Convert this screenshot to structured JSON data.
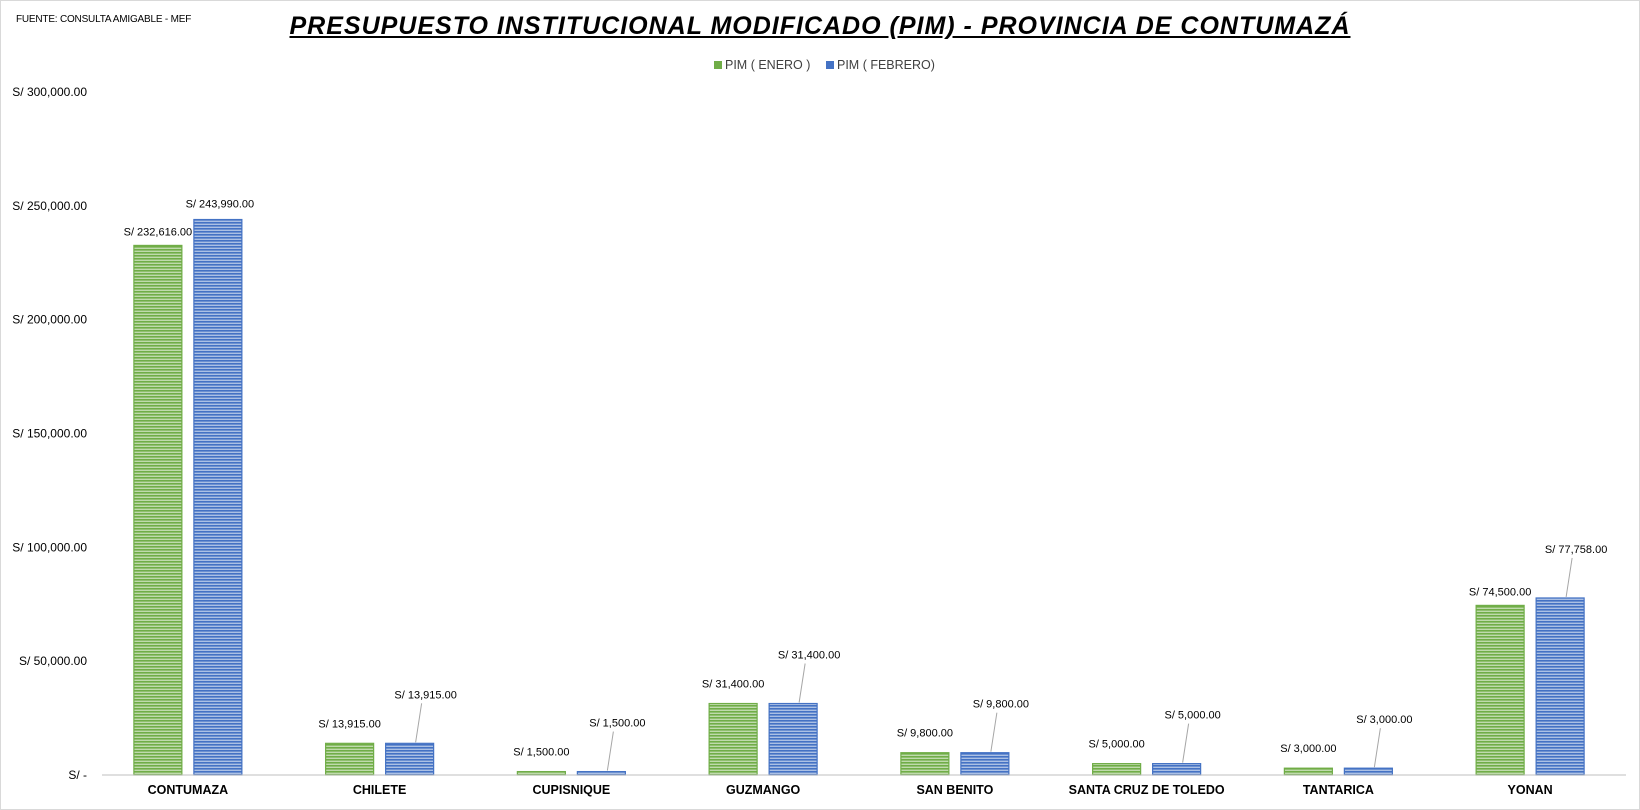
{
  "source": "FUENTE: CONSULTA AMIGABLE - MEF",
  "chart_data": {
    "type": "bar",
    "title": "PRESUPUESTO INSTITUCIONAL MODIFICADO (PIM) - PROVINCIA DE CONTUMAZÁ",
    "categories": [
      "CONTUMAZA",
      "CHILETE",
      "CUPISNIQUE",
      "GUZMANGO",
      "SAN BENITO",
      "SANTA CRUZ DE TOLEDO",
      "TANTARICA",
      "YONAN"
    ],
    "series": [
      {
        "name": "PIM ( ENERO )",
        "color": "#70ad47",
        "values": [
          232616,
          13915,
          1500,
          31400,
          9800,
          5000,
          3000,
          74500
        ],
        "labels": [
          "S/ 232,616.00",
          "S/ 13,915.00",
          "S/ 1,500.00",
          "S/ 31,400.00",
          "S/ 9,800.00",
          "S/ 5,000.00",
          "S/ 3,000.00",
          "S/ 74,500.00"
        ]
      },
      {
        "name": "PIM ( FEBRERO)",
        "color": "#4472c4",
        "values": [
          243990,
          13915,
          1500,
          31400,
          9800,
          5000,
          3000,
          77758
        ],
        "labels": [
          "S/ 243,990.00",
          "S/ 13,915.00",
          "S/ 1,500.00",
          "S/ 31,400.00",
          "S/ 9,800.00",
          "S/ 5,000.00",
          "S/ 3,000.00",
          "S/ 77,758.00"
        ]
      }
    ],
    "ylim": [
      0,
      300000
    ],
    "yticks": [
      0,
      50000,
      100000,
      150000,
      200000,
      250000,
      300000
    ],
    "ytick_labels": [
      "S/ -",
      "S/ 50,000.00",
      "S/ 100,000.00",
      "S/ 150,000.00",
      "S/ 200,000.00",
      "S/ 250,000.00",
      "S/ 300,000.00"
    ],
    "grid": false,
    "legend": "top-center",
    "bar_pattern": "horizontal-stripes"
  }
}
